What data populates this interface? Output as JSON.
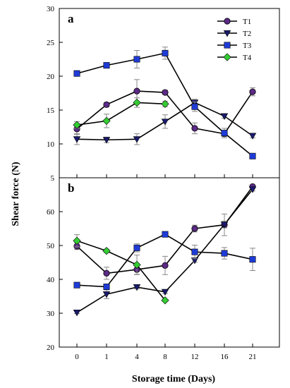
{
  "colors": {
    "T1": "#5b2a86",
    "T2": "#1a1a6e",
    "T3": "#1f3bd6",
    "T4": "#33cc33",
    "line": "#000000",
    "error_bar": "#888888"
  },
  "chart_data": [
    {
      "type": "line",
      "panel_label": "a",
      "x_categories": [
        "0",
        "1",
        "4",
        "8",
        "12",
        "16",
        "21"
      ],
      "ylim": [
        5,
        30
      ],
      "yticks": [
        "5",
        "10",
        "15",
        "20",
        "25",
        "30"
      ],
      "legend_placement": "top-right",
      "grid": false,
      "series": [
        {
          "name": "T1",
          "marker": "circle",
          "values": [
            12.2,
            15.8,
            17.8,
            17.6,
            12.3,
            11.5,
            17.7
          ],
          "errors": [
            0.8,
            0.3,
            1.7,
            0.3,
            0.8,
            0.4,
            0.6
          ]
        },
        {
          "name": "T2",
          "marker": "triangle-down",
          "values": [
            10.7,
            10.6,
            10.7,
            13.3,
            16.1,
            14.1,
            11.2
          ],
          "errors": [
            0.8,
            0.4,
            0.8,
            1.0,
            0.5,
            0.3,
            0.3
          ]
        },
        {
          "name": "T3",
          "marker": "square",
          "values": [
            20.4,
            21.6,
            22.5,
            23.4,
            15.5,
            11.6,
            8.2
          ],
          "errors": [
            0.3,
            0.3,
            1.3,
            0.9,
            0.7,
            0.7,
            0.3
          ]
        },
        {
          "name": "T4",
          "marker": "diamond",
          "values": [
            12.8,
            13.4,
            16.1,
            15.9,
            null,
            null,
            null
          ],
          "errors": [
            0.5,
            1.0,
            0.7,
            0.4,
            null,
            null,
            null
          ]
        }
      ]
    },
    {
      "type": "line",
      "panel_label": "b",
      "x_categories": [
        "0",
        "1",
        "4",
        "8",
        "12",
        "16",
        "21"
      ],
      "ylim": [
        20,
        70
      ],
      "yticks": [
        "20",
        "30",
        "40",
        "50",
        "60"
      ],
      "grid": false,
      "series": [
        {
          "name": "T1",
          "marker": "circle",
          "values": [
            49.8,
            41.8,
            42.9,
            44.1,
            55.0,
            56.1,
            67.4
          ],
          "errors": [
            1.0,
            1.8,
            1.4,
            2.7,
            1.0,
            3.2,
            0.3
          ]
        },
        {
          "name": "T2",
          "marker": "triangle-down",
          "values": [
            30.2,
            35.6,
            37.7,
            36.3,
            45.6,
            56.2,
            66.6
          ],
          "errors": [
            0.3,
            1.3,
            0.5,
            0.5,
            0.5,
            1.0,
            0.5
          ]
        },
        {
          "name": "T3",
          "marker": "square",
          "values": [
            38.3,
            37.8,
            49.3,
            53.3,
            48.1,
            47.7,
            45.9
          ],
          "errors": [
            0.3,
            0.5,
            1.2,
            0.5,
            2.0,
            1.7,
            3.3
          ]
        },
        {
          "name": "T4",
          "marker": "diamond",
          "values": [
            51.4,
            48.4,
            44.3,
            33.8,
            null,
            null,
            null
          ],
          "errors": [
            1.8,
            0.5,
            2.9,
            0.3,
            null,
            null,
            null
          ]
        }
      ]
    }
  ],
  "axes": {
    "ylabel": "Shear force (N)",
    "xlabel": "Storage time (Days)"
  }
}
